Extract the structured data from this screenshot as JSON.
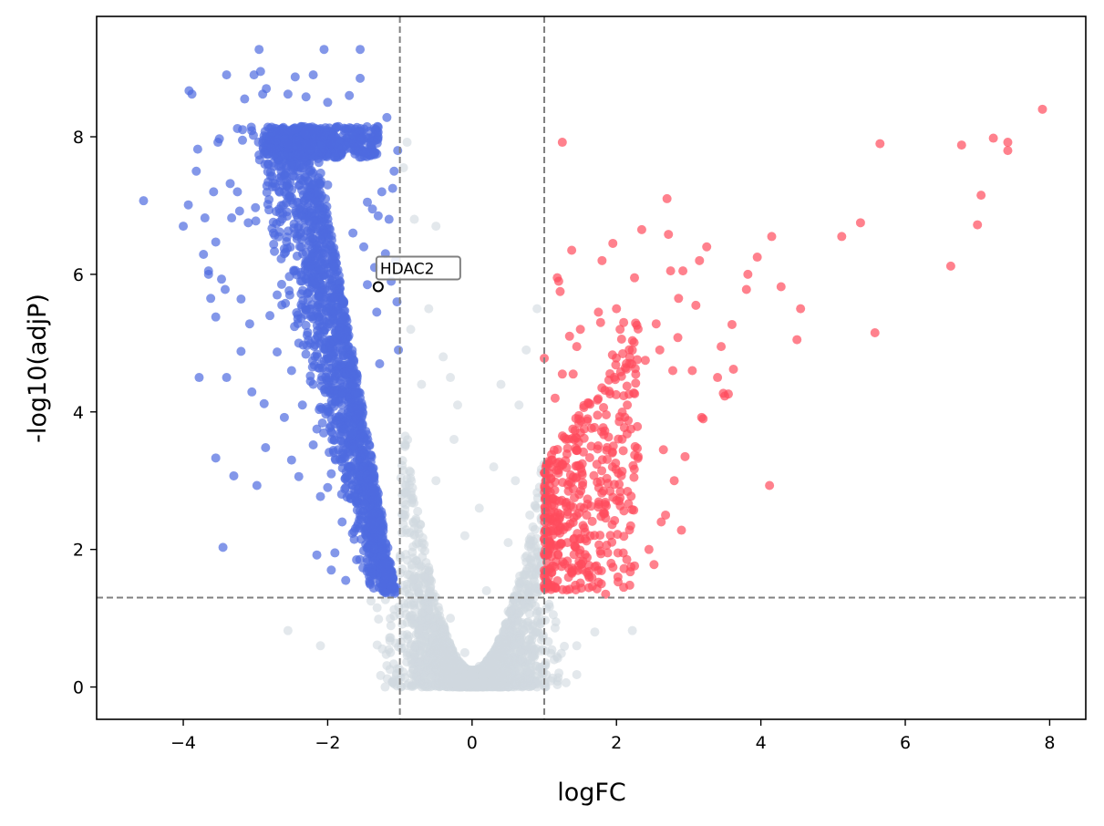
{
  "chart_data": {
    "type": "scatter",
    "title": "",
    "xlabel": "logFC",
    "ylabel": "-log10(adjP)",
    "xlim": [
      -5.2,
      8.5
    ],
    "ylim": [
      -0.47,
      9.75
    ],
    "xticks": [
      -4,
      -2,
      0,
      2,
      4,
      6,
      8
    ],
    "xtick_labels": [
      "−4",
      "−2",
      "0",
      "2",
      "4",
      "6",
      "8"
    ],
    "yticks": [
      0,
      2,
      4,
      6,
      8
    ],
    "ytick_labels": [
      "0",
      "2",
      "4",
      "6",
      "8"
    ],
    "grid": false,
    "thresholds": {
      "logFC": [
        -1,
        1
      ],
      "neg_log10_adjP": 1.3
    },
    "colors": {
      "down": "#4f6be0",
      "up": "#ff4b5c",
      "ns": "#d0d9e0",
      "threshold_line": "#808080"
    },
    "series": [
      {
        "group": "down",
        "points": [
          [
            -4.55,
            7.07
          ],
          [
            -4.0,
            6.7
          ],
          [
            -3.92,
            8.67
          ],
          [
            -3.88,
            8.62
          ],
          [
            -3.93,
            7.01
          ],
          [
            -3.82,
            7.5
          ],
          [
            -3.8,
            7.82
          ],
          [
            -3.78,
            4.5
          ],
          [
            -3.72,
            6.29
          ],
          [
            -3.7,
            6.82
          ],
          [
            -3.65,
            6.05
          ],
          [
            -3.65,
            6.0
          ],
          [
            -3.62,
            5.65
          ],
          [
            -3.58,
            7.2
          ],
          [
            -3.55,
            6.47
          ],
          [
            -3.55,
            5.38
          ],
          [
            -3.55,
            3.33
          ],
          [
            -3.52,
            7.92
          ],
          [
            -3.5,
            7.97
          ],
          [
            -3.47,
            5.93
          ],
          [
            -3.45,
            2.03
          ],
          [
            -3.42,
            5.78
          ],
          [
            -3.4,
            8.9
          ],
          [
            -3.4,
            4.5
          ],
          [
            -3.35,
            7.32
          ],
          [
            -3.33,
            6.82
          ],
          [
            -3.3,
            3.07
          ],
          [
            -3.25,
            8.12
          ],
          [
            -3.25,
            7.2
          ],
          [
            -3.22,
            6.92
          ],
          [
            -3.2,
            5.64
          ],
          [
            -3.2,
            4.88
          ],
          [
            -3.18,
            7.95
          ],
          [
            -3.15,
            8.55
          ],
          [
            -3.1,
            6.75
          ],
          [
            -3.08,
            5.28
          ],
          [
            -3.05,
            4.29
          ],
          [
            -3.02,
            8.9
          ],
          [
            -3.0,
            6.97
          ],
          [
            -2.98,
            2.93
          ],
          [
            -2.95,
            9.27
          ],
          [
            -2.93,
            8.95
          ],
          [
            -2.9,
            8.62
          ],
          [
            -2.88,
            4.12
          ],
          [
            -2.86,
            3.48
          ],
          [
            -2.85,
            8.7
          ],
          [
            -2.8,
            5.4
          ],
          [
            -2.7,
            4.87
          ],
          [
            -2.6,
            3.92
          ],
          [
            -2.55,
            8.62
          ],
          [
            -2.5,
            3.3
          ],
          [
            -2.45,
            8.87
          ],
          [
            -2.4,
            3.06
          ],
          [
            -2.3,
            8.58
          ],
          [
            -2.2,
            8.9
          ],
          [
            -2.2,
            3.52
          ],
          [
            -2.15,
            1.92
          ],
          [
            -2.1,
            2.77
          ],
          [
            -2.05,
            9.27
          ],
          [
            -2.0,
            8.5
          ],
          [
            -2.0,
            2.9
          ],
          [
            -1.95,
            1.7
          ],
          [
            -1.9,
            1.95
          ],
          [
            -1.85,
            8.15
          ],
          [
            -1.8,
            2.4
          ],
          [
            -1.75,
            1.55
          ],
          [
            -1.7,
            8.6
          ],
          [
            -1.65,
            6.6
          ],
          [
            -1.62,
            7.85
          ],
          [
            -1.6,
            1.85
          ],
          [
            -1.55,
            9.27
          ],
          [
            -1.55,
            8.85
          ],
          [
            -1.5,
            6.4
          ],
          [
            -1.45,
            7.05
          ],
          [
            -1.45,
            5.85
          ],
          [
            -1.4,
            7.9
          ],
          [
            -1.38,
            6.95
          ],
          [
            -1.35,
            6.1
          ],
          [
            -1.32,
            5.45
          ],
          [
            -1.3,
            6.85
          ],
          [
            -1.28,
            4.7
          ],
          [
            -1.25,
            7.2
          ],
          [
            -1.2,
            6.3
          ],
          [
            -1.18,
            8.28
          ],
          [
            -1.15,
            6.8
          ],
          [
            -1.12,
            5.9
          ],
          [
            -1.1,
            7.25
          ],
          [
            -1.08,
            7.5
          ],
          [
            -1.06,
            6.2
          ],
          [
            -1.04,
            5.6
          ],
          [
            -1.02,
            4.9
          ],
          [
            -1.03,
            7.8
          ],
          [
            -1.3,
            2.2
          ],
          [
            -1.2,
            1.8
          ],
          [
            -1.1,
            1.6
          ],
          [
            -1.05,
            1.45
          ],
          [
            -2.7,
            5.7
          ],
          [
            -2.6,
            6.3
          ],
          [
            -2.4,
            6.7
          ],
          [
            -2.3,
            7.1
          ],
          [
            -2.2,
            5.9
          ],
          [
            -2.1,
            6.5
          ],
          [
            -2.0,
            7.3
          ],
          [
            -1.9,
            6.0
          ],
          [
            -1.8,
            5.2
          ],
          [
            -1.7,
            4.6
          ],
          [
            -1.6,
            3.9
          ],
          [
            -1.5,
            3.2
          ],
          [
            -2.5,
            7.6
          ],
          [
            -2.3,
            7.9
          ],
          [
            -2.1,
            8.0
          ],
          [
            -1.9,
            7.7
          ],
          [
            -2.6,
            7.2
          ],
          [
            -2.4,
            5.0
          ],
          [
            -2.2,
            4.4
          ],
          [
            -2.0,
            4.0
          ],
          [
            -1.8,
            3.4
          ],
          [
            -1.6,
            2.7
          ],
          [
            -2.75,
            6.6
          ],
          [
            -2.5,
            4.6
          ],
          [
            -2.35,
            4.1
          ],
          [
            -2.15,
            3.75
          ],
          [
            -1.95,
            3.1
          ],
          [
            -1.75,
            2.9
          ],
          [
            -1.55,
            2.5
          ],
          [
            -1.35,
            2.0
          ]
        ]
      },
      {
        "group": "up",
        "points": [
          [
            1.0,
            4.78
          ],
          [
            1.05,
            2.4
          ],
          [
            1.1,
            3.3
          ],
          [
            1.1,
            1.9
          ],
          [
            1.15,
            4.2
          ],
          [
            1.18,
            5.95
          ],
          [
            1.2,
            5.9
          ],
          [
            1.22,
            5.75
          ],
          [
            1.25,
            7.92
          ],
          [
            1.25,
            4.55
          ],
          [
            1.3,
            3.6
          ],
          [
            1.32,
            2.1
          ],
          [
            1.35,
            5.1
          ],
          [
            1.38,
            6.35
          ],
          [
            1.4,
            4.55
          ],
          [
            1.45,
            4.95
          ],
          [
            1.5,
            5.2
          ],
          [
            1.55,
            2.6
          ],
          [
            1.6,
            3.9
          ],
          [
            1.65,
            3.5
          ],
          [
            1.7,
            1.75
          ],
          [
            1.75,
            5.45
          ],
          [
            1.78,
            5.3
          ],
          [
            1.8,
            6.2
          ],
          [
            1.82,
            2.85
          ],
          [
            1.85,
            1.35
          ],
          [
            1.9,
            4.3
          ],
          [
            1.95,
            6.45
          ],
          [
            2.0,
            5.5
          ],
          [
            2.02,
            1.6
          ],
          [
            2.05,
            5.2
          ],
          [
            2.1,
            5.3
          ],
          [
            2.1,
            1.45
          ],
          [
            2.15,
            4.1
          ],
          [
            2.2,
            3.75
          ],
          [
            2.25,
            5.95
          ],
          [
            2.3,
            3.35
          ],
          [
            2.35,
            6.65
          ],
          [
            2.4,
            4.75
          ],
          [
            2.45,
            2.0
          ],
          [
            2.52,
            1.78
          ],
          [
            2.55,
            5.28
          ],
          [
            2.6,
            4.9
          ],
          [
            2.62,
            2.4
          ],
          [
            2.65,
            3.45
          ],
          [
            2.68,
            2.5
          ],
          [
            2.7,
            7.1
          ],
          [
            2.72,
            6.58
          ],
          [
            2.75,
            6.05
          ],
          [
            2.78,
            4.6
          ],
          [
            2.8,
            3.0
          ],
          [
            2.85,
            5.08
          ],
          [
            2.86,
            5.65
          ],
          [
            2.9,
            2.28
          ],
          [
            2.92,
            6.05
          ],
          [
            2.95,
            3.35
          ],
          [
            3.05,
            4.6
          ],
          [
            3.1,
            5.55
          ],
          [
            3.15,
            6.2
          ],
          [
            3.18,
            3.92
          ],
          [
            3.2,
            3.9
          ],
          [
            3.25,
            6.4
          ],
          [
            3.4,
            4.5
          ],
          [
            3.45,
            4.95
          ],
          [
            3.48,
            4.27
          ],
          [
            3.5,
            4.23
          ],
          [
            3.55,
            4.26
          ],
          [
            3.6,
            5.27
          ],
          [
            3.62,
            4.62
          ],
          [
            3.8,
            5.78
          ],
          [
            3.82,
            6.0
          ],
          [
            3.95,
            6.25
          ],
          [
            4.12,
            2.93
          ],
          [
            4.15,
            6.55
          ],
          [
            4.28,
            5.82
          ],
          [
            4.5,
            5.05
          ],
          [
            4.55,
            5.5
          ],
          [
            5.12,
            6.55
          ],
          [
            5.38,
            6.75
          ],
          [
            5.58,
            5.15
          ],
          [
            5.65,
            7.9
          ],
          [
            6.63,
            6.12
          ],
          [
            6.78,
            7.88
          ],
          [
            7.0,
            6.72
          ],
          [
            7.05,
            7.15
          ],
          [
            7.22,
            7.98
          ],
          [
            7.42,
            7.92
          ],
          [
            7.42,
            7.8
          ],
          [
            7.9,
            8.4
          ]
        ]
      },
      {
        "group": "ns",
        "points": [
          [
            -0.9,
            7.92
          ],
          [
            -0.95,
            7.55
          ],
          [
            -0.8,
            6.8
          ],
          [
            -0.5,
            6.7
          ],
          [
            -0.7,
            6.0
          ],
          [
            -0.6,
            5.5
          ],
          [
            -0.85,
            5.2
          ],
          [
            -0.4,
            4.8
          ],
          [
            -0.3,
            4.5
          ],
          [
            -0.7,
            4.4
          ],
          [
            -0.2,
            4.1
          ],
          [
            0.4,
            4.4
          ],
          [
            0.75,
            4.9
          ],
          [
            0.9,
            5.5
          ],
          [
            0.65,
            4.1
          ],
          [
            -0.25,
            3.6
          ],
          [
            0.3,
            3.2
          ],
          [
            0.6,
            3.0
          ],
          [
            -0.5,
            3.0
          ],
          [
            0.1,
            2.6
          ],
          [
            -0.1,
            2.2
          ],
          [
            0.5,
            2.1
          ],
          [
            0.8,
            2.5
          ],
          [
            -0.9,
            2.8
          ],
          [
            -1.2,
            1.27
          ],
          [
            -1.4,
            1.25
          ],
          [
            -2.55,
            0.82
          ],
          [
            -2.1,
            0.6
          ],
          [
            2.22,
            0.82
          ],
          [
            1.45,
            0.6
          ],
          [
            1.45,
            0.18
          ],
          [
            1.7,
            0.8
          ],
          [
            -0.6,
            1.6
          ],
          [
            0.2,
            1.4
          ],
          [
            -0.3,
            1.0
          ],
          [
            0.5,
            1.1
          ],
          [
            -0.8,
            0.9
          ],
          [
            0.8,
            0.7
          ],
          [
            -0.1,
            0.5
          ],
          [
            0.1,
            0.3
          ]
        ],
        "cloud": "dense V-shaped cloud, |logFC| < 1 or adjP > 0.05"
      }
    ],
    "annotations": [
      {
        "label": "HDAC2",
        "x": -1.3,
        "y": 5.82
      }
    ]
  }
}
